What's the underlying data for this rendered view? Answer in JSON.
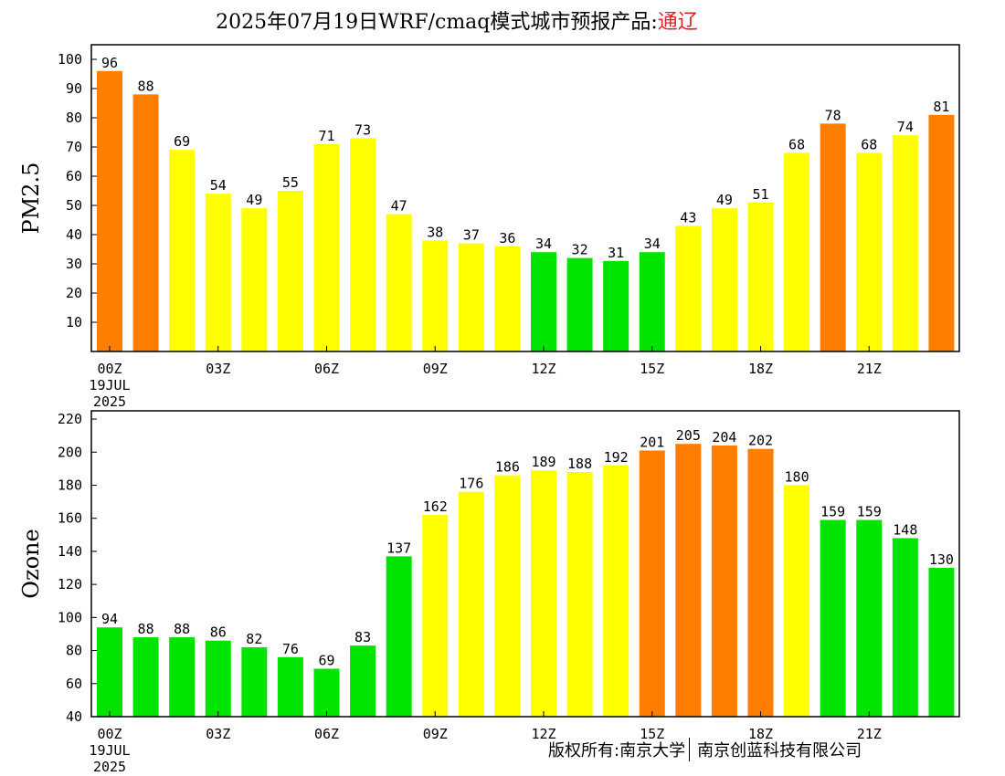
{
  "title": {
    "main": "2025年07月19日WRF/cmaq模式城市预报产品:",
    "city": "通辽",
    "city_color": "#e0202a"
  },
  "footer": {
    "copyright": "版权所有:南京大学",
    "company": "南京创蓝科技有限公司"
  },
  "colors": {
    "green": "#00e400",
    "yellow": "#ffff00",
    "orange": "#ff7e00"
  },
  "chart_data": [
    {
      "type": "bar",
      "ylabel": "PM2.5",
      "ylim": [
        0,
        105
      ],
      "yticks": [
        10,
        20,
        30,
        40,
        50,
        60,
        70,
        80,
        90,
        100
      ],
      "x": [
        "00Z",
        "01Z",
        "02Z",
        "03Z",
        "04Z",
        "05Z",
        "06Z",
        "07Z",
        "08Z",
        "09Z",
        "10Z",
        "11Z",
        "12Z",
        "13Z",
        "14Z",
        "15Z",
        "16Z",
        "17Z",
        "18Z",
        "19Z",
        "20Z",
        "21Z",
        "22Z",
        "23Z"
      ],
      "xtick_labels": [
        {
          "index": 0,
          "lines": [
            "00Z",
            "19JUL",
            "2025"
          ]
        },
        {
          "index": 3,
          "lines": [
            "03Z"
          ]
        },
        {
          "index": 6,
          "lines": [
            "06Z"
          ]
        },
        {
          "index": 9,
          "lines": [
            "09Z"
          ]
        },
        {
          "index": 12,
          "lines": [
            "12Z"
          ]
        },
        {
          "index": 15,
          "lines": [
            "15Z"
          ]
        },
        {
          "index": 18,
          "lines": [
            "18Z"
          ]
        },
        {
          "index": 21,
          "lines": [
            "21Z"
          ]
        }
      ],
      "values": [
        96,
        88,
        69,
        54,
        49,
        55,
        71,
        73,
        47,
        38,
        37,
        36,
        34,
        32,
        31,
        34,
        43,
        49,
        51,
        68,
        78,
        68,
        74,
        81
      ],
      "bar_colors": [
        "orange",
        "orange",
        "yellow",
        "yellow",
        "yellow",
        "yellow",
        "yellow",
        "yellow",
        "yellow",
        "yellow",
        "yellow",
        "yellow",
        "green",
        "green",
        "green",
        "green",
        "yellow",
        "yellow",
        "yellow",
        "yellow",
        "orange",
        "yellow",
        "yellow",
        "orange"
      ],
      "grid": false
    },
    {
      "type": "bar",
      "ylabel": "Ozone",
      "ylim": [
        40,
        225
      ],
      "yticks": [
        40,
        60,
        80,
        100,
        120,
        140,
        160,
        180,
        200,
        220
      ],
      "x": [
        "00Z",
        "01Z",
        "02Z",
        "03Z",
        "04Z",
        "05Z",
        "06Z",
        "07Z",
        "08Z",
        "09Z",
        "10Z",
        "11Z",
        "12Z",
        "13Z",
        "14Z",
        "15Z",
        "16Z",
        "17Z",
        "18Z",
        "19Z",
        "20Z",
        "21Z",
        "22Z",
        "23Z"
      ],
      "xtick_labels": [
        {
          "index": 0,
          "lines": [
            "00Z",
            "19JUL",
            "2025"
          ]
        },
        {
          "index": 3,
          "lines": [
            "03Z"
          ]
        },
        {
          "index": 6,
          "lines": [
            "06Z"
          ]
        },
        {
          "index": 9,
          "lines": [
            "09Z"
          ]
        },
        {
          "index": 12,
          "lines": [
            "12Z"
          ]
        },
        {
          "index": 15,
          "lines": [
            "15Z"
          ]
        },
        {
          "index": 18,
          "lines": [
            "18Z"
          ]
        },
        {
          "index": 21,
          "lines": [
            "21Z"
          ]
        }
      ],
      "values": [
        94,
        88,
        88,
        86,
        82,
        76,
        69,
        83,
        137,
        162,
        176,
        186,
        189,
        188,
        192,
        201,
        205,
        204,
        202,
        180,
        159,
        159,
        148,
        130
      ],
      "bar_colors": [
        "green",
        "green",
        "green",
        "green",
        "green",
        "green",
        "green",
        "green",
        "green",
        "yellow",
        "yellow",
        "yellow",
        "yellow",
        "yellow",
        "yellow",
        "orange",
        "orange",
        "orange",
        "orange",
        "yellow",
        "green",
        "green",
        "green",
        "green"
      ],
      "grid": false
    }
  ]
}
